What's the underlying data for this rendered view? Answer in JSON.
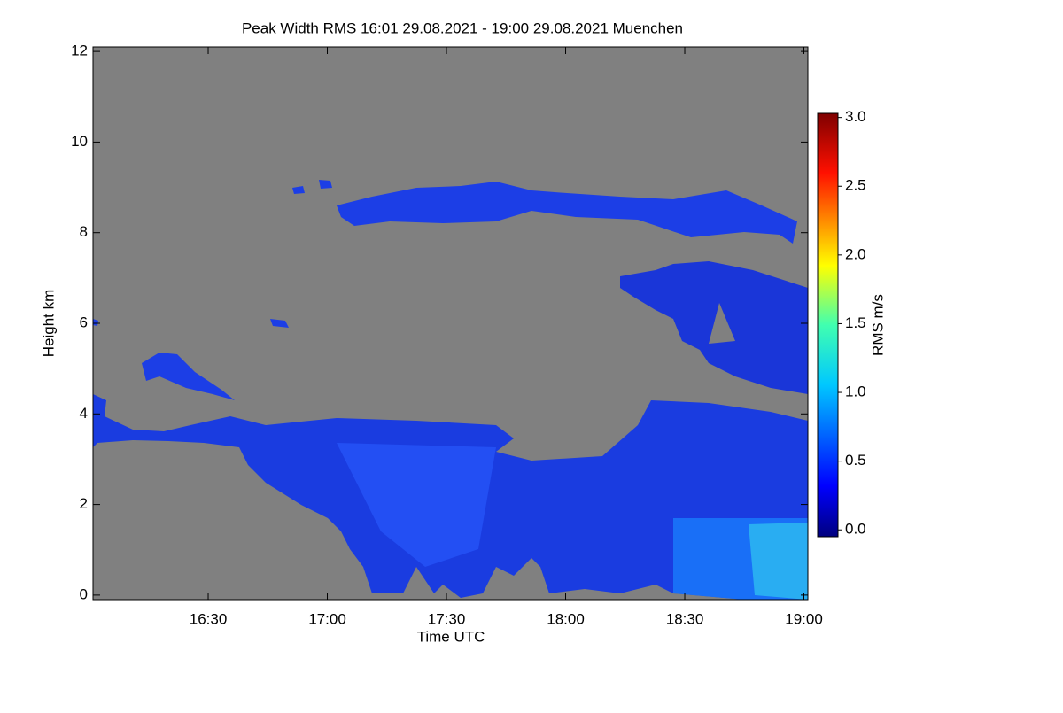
{
  "chart_data": {
    "type": "heatmap",
    "title": "Peak Width RMS   16:01 29.08.2021 - 19:00 29.08.2021 Muenchen",
    "x_label": "Time UTC",
    "y_label": "Height km",
    "colorbar_label": "RMS m/s",
    "xlim": [
      1,
      181
    ],
    "xticks": [
      {
        "value": 30,
        "label": "16:30"
      },
      {
        "value": 60,
        "label": "17:00"
      },
      {
        "value": 90,
        "label": "17:30"
      },
      {
        "value": 120,
        "label": "18:00"
      },
      {
        "value": 150,
        "label": "18:30"
      },
      {
        "value": 180,
        "label": "19:00"
      }
    ],
    "ylim": [
      -0.1,
      12.1
    ],
    "yticks": [
      0,
      2,
      4,
      6,
      8,
      10,
      12
    ],
    "clim": [
      -0.05,
      3.03
    ],
    "cticks": [
      {
        "value": 0,
        "label": "0.0"
      },
      {
        "value": 0.5,
        "label": "0.5"
      },
      {
        "value": 1,
        "label": "1.0"
      },
      {
        "value": 1.5,
        "label": "1.5"
      },
      {
        "value": 2,
        "label": "2.0"
      },
      {
        "value": 2.5,
        "label": "2.5"
      },
      {
        "value": 3,
        "label": "3.0"
      }
    ],
    "background_color": "#808080"
  }
}
